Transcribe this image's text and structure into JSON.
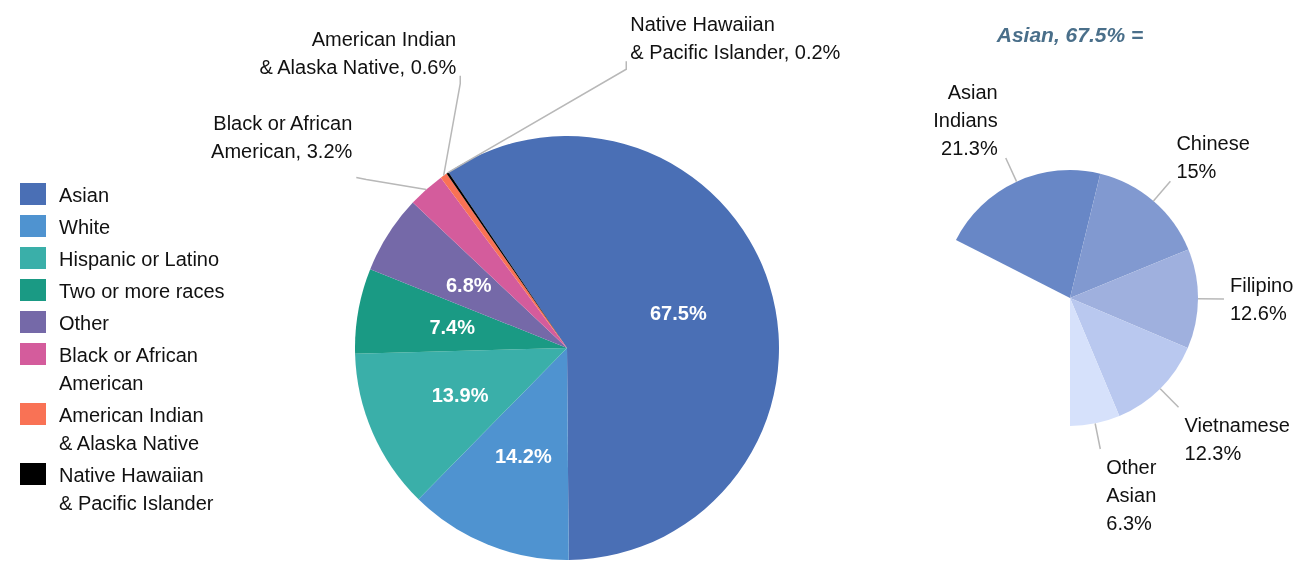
{
  "chart_data": [
    {
      "type": "pie",
      "categories": [
        "Asian",
        "White",
        "Hispanic or Latino",
        "Two or more races",
        "Other",
        "Black or African\nAmerican",
        "American Indian\n& Alaska Native",
        "Native Hawaiian\n& Pacific Islander"
      ],
      "values": [
        67.5,
        14.2,
        13.9,
        7.4,
        6.8,
        3.2,
        0.6,
        0.2
      ],
      "colors": [
        "#4a6fb5",
        "#4f93d0",
        "#3aafa9",
        "#1a9a84",
        "#7569a8",
        "#d45c9c",
        "#f97255",
        "#000000"
      ],
      "value_labels": [
        "67.5%",
        "14.2%",
        "13.9%",
        "7.4%",
        "6.8%",
        "Black or African\nAmerican, 3.2%",
        "American Indian\n& Alaska Native, 0.6%",
        "Native Hawaiian\n& Pacific Islander, 0.2%"
      ],
      "legend": "left"
    },
    {
      "type": "pie",
      "title": "Asian, 67.5% =",
      "categories": [
        "Asian Indians",
        "Chinese",
        "Filipino",
        "Vietnamese",
        "Other Asian"
      ],
      "values": [
        21.3,
        15,
        12.6,
        12.3,
        6.3
      ],
      "colors": [
        "#6887c6",
        "#8199d0",
        "#9fb0de",
        "#b9c8ef",
        "#d6e1fb"
      ],
      "value_labels": [
        "21.3%",
        "15%",
        "12.6%",
        "12.3%",
        "6.3%"
      ]
    }
  ]
}
